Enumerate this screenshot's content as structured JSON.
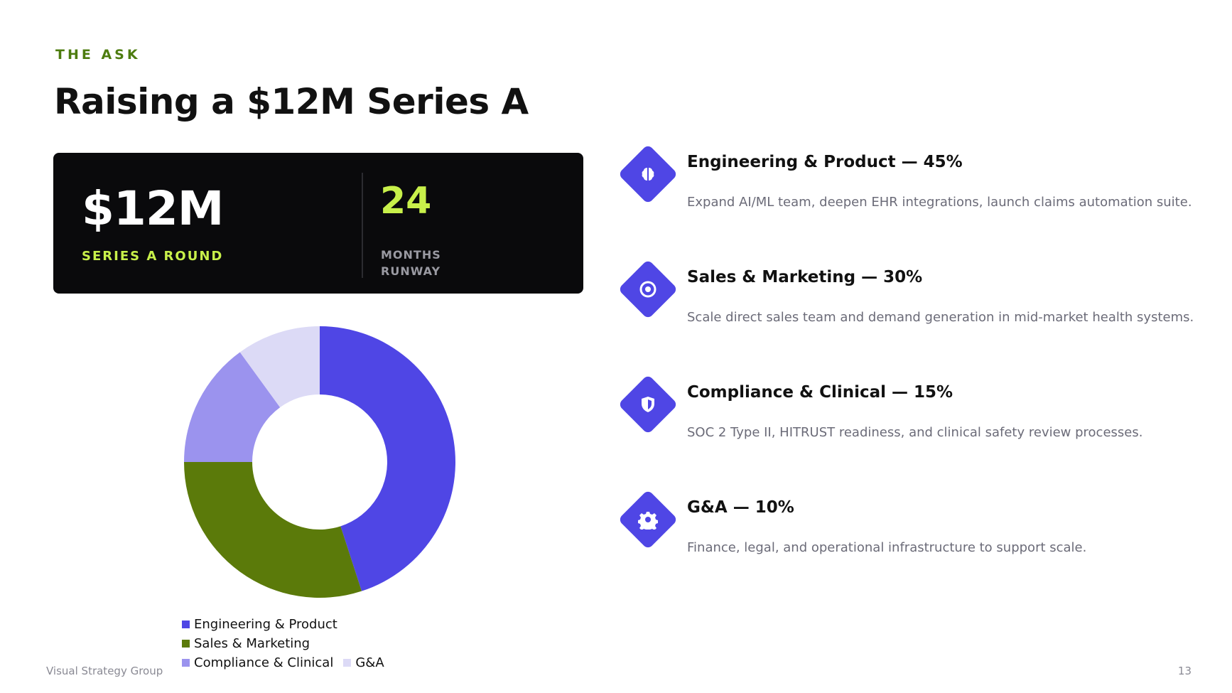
{
  "header": {
    "eyebrow": "THE ASK",
    "title": "Raising a $12M Series A"
  },
  "stats": {
    "round_value": "$12M",
    "round_label": "SERIES A ROUND",
    "runway_value": "24",
    "runway_label": "MONTHS RUNWAY"
  },
  "chart_data": {
    "type": "pie",
    "donut": true,
    "categories": [
      "Engineering & Product",
      "Sales & Marketing",
      "Compliance & Clinical",
      "G&A"
    ],
    "values": [
      45,
      30,
      15,
      10
    ],
    "colors": [
      "#4f46e5",
      "#5b7a0a",
      "#9b93ee",
      "#dcdaf6"
    ],
    "legend_position": "bottom"
  },
  "allocations": [
    {
      "title": "Engineering & Product — 45%",
      "description": "Expand AI/ML team, deepen EHR integrations, launch claims automation suite.",
      "icon": "brain-icon"
    },
    {
      "title": "Sales & Marketing — 30%",
      "description": "Scale direct sales team and demand generation in mid-market health systems.",
      "icon": "target-icon"
    },
    {
      "title": "Compliance & Clinical — 15%",
      "description": "SOC 2 Type II, HITRUST readiness, and clinical safety review processes.",
      "icon": "shield-icon"
    },
    {
      "title": "G&A — 10%",
      "description": "Finance, legal, and operational infrastructure to support scale.",
      "icon": "gear-icon"
    }
  ],
  "footer": {
    "company": "Visual Strategy Group",
    "page_number": "13"
  },
  "theme": {
    "accent": "#4f46e5",
    "lime": "#c8f04a",
    "olive": "#4d7c0f"
  }
}
